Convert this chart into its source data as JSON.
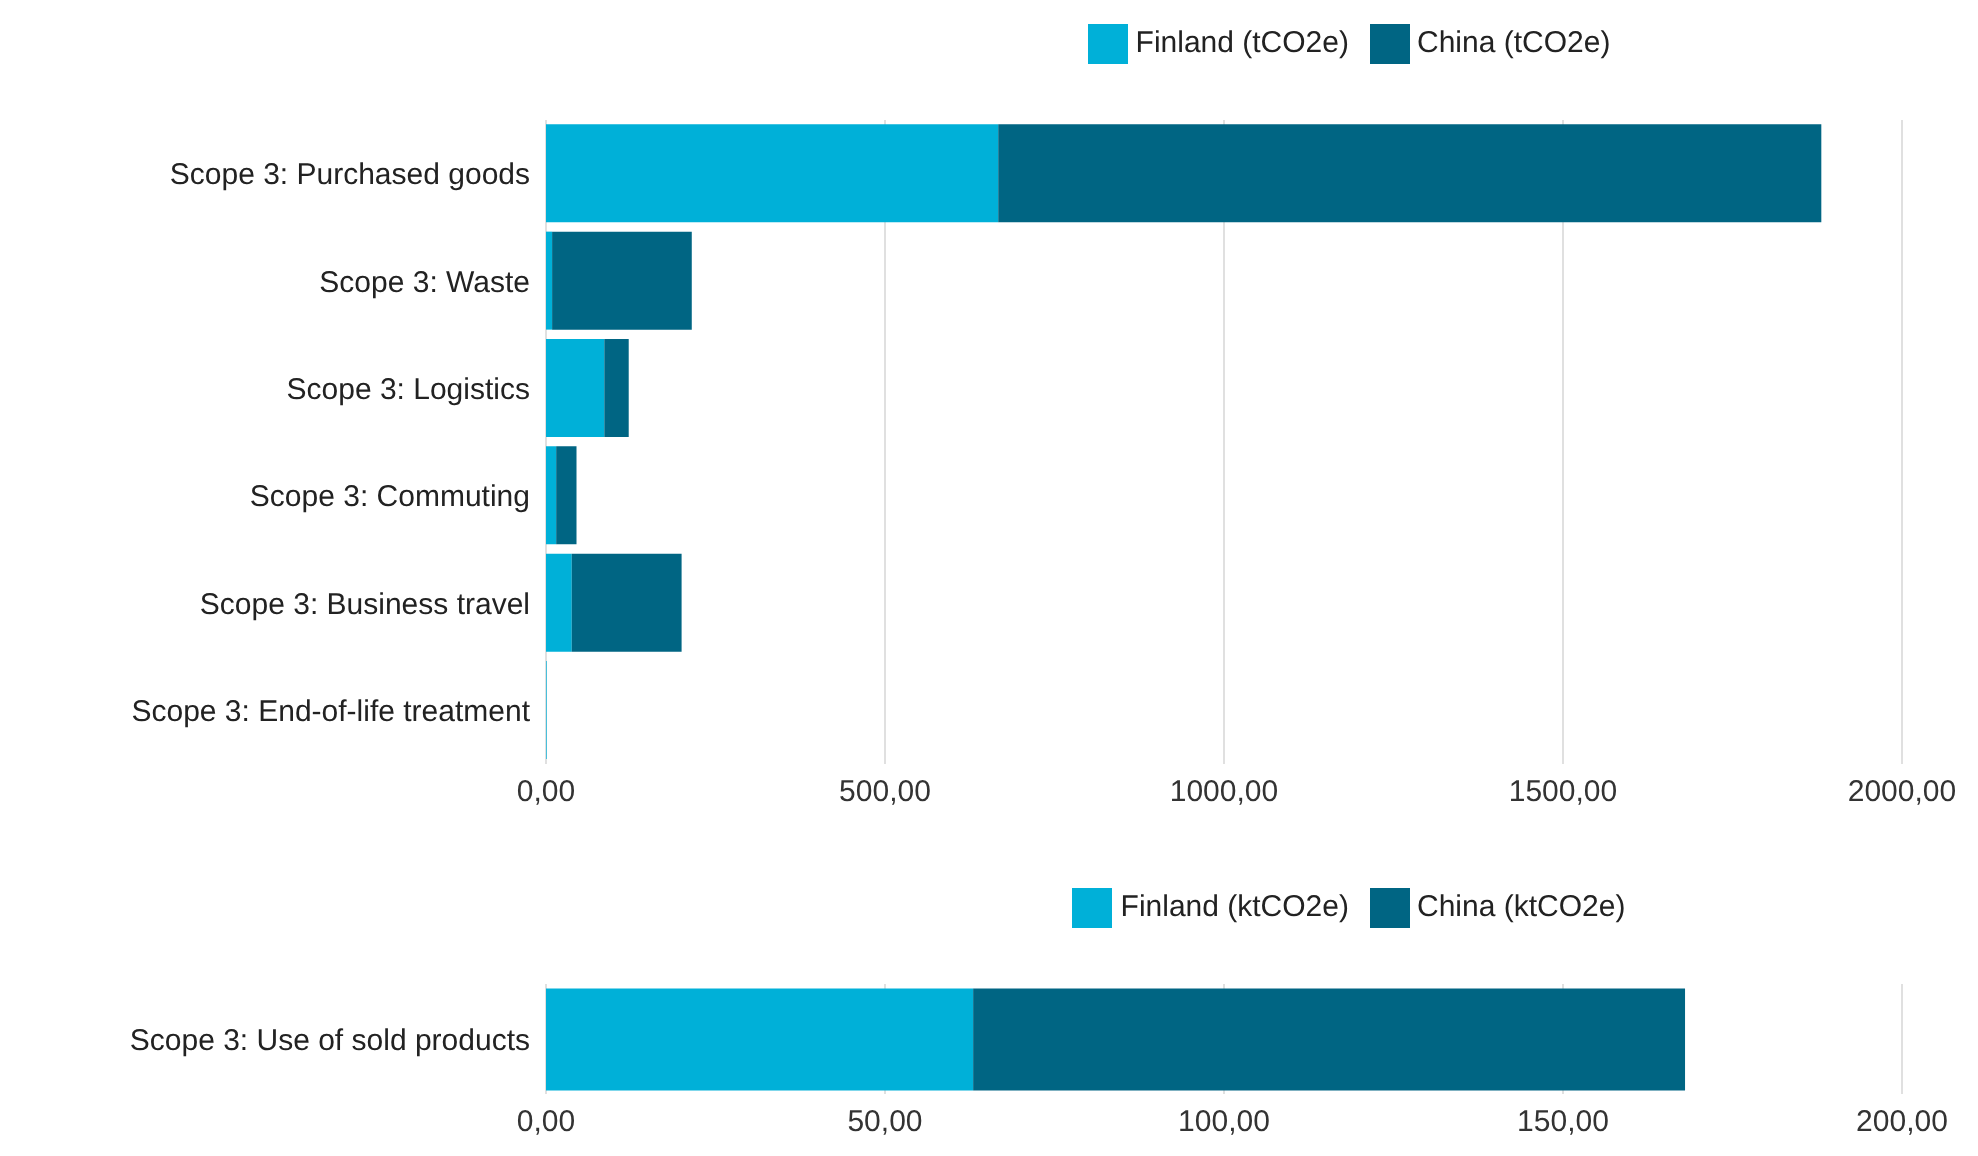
{
  "chart_data": [
    {
      "type": "bar",
      "orientation": "horizontal",
      "stacked": true,
      "categories": [
        "Scope 3: Purchased goods",
        "Scope 3: Waste",
        "Scope 3: Logistics",
        "Scope 3: Commuting",
        "Scope 3: Business travel",
        "Scope 3: End-of-life treatment"
      ],
      "series": [
        {
          "name": "Finland (tCO2e)",
          "color": "#00b0d8",
          "values": [
            667,
            9,
            86,
            15,
            38,
            1
          ]
        },
        {
          "name": "China (tCO2e)",
          "color": "#006583",
          "values": [
            1214,
            206,
            36,
            30,
            162,
            0
          ]
        }
      ],
      "xlim": [
        0,
        2000
      ],
      "xticks": [
        {
          "value": 0,
          "label": "0,00"
        },
        {
          "value": 500,
          "label": "500,00"
        },
        {
          "value": 1000,
          "label": "1000,00"
        },
        {
          "value": 1500,
          "label": "1500,00"
        },
        {
          "value": 2000,
          "label": "2000,00"
        }
      ],
      "grid": "x",
      "legend": "top"
    },
    {
      "type": "bar",
      "orientation": "horizontal",
      "stacked": true,
      "categories": [
        "Scope 3: Use of sold products"
      ],
      "series": [
        {
          "name": "Finland (ktCO2e)",
          "color": "#00b0d8",
          "values": [
            63
          ]
        },
        {
          "name": "China (ktCO2e)",
          "color": "#006583",
          "values": [
            105
          ]
        }
      ],
      "xlim": [
        0,
        200
      ],
      "xticks": [
        {
          "value": 0,
          "label": "0,00"
        },
        {
          "value": 50,
          "label": "50,00"
        },
        {
          "value": 100,
          "label": "100,00"
        },
        {
          "value": 150,
          "label": "150,00"
        },
        {
          "value": 200,
          "label": "200,00"
        }
      ],
      "grid": "x",
      "legend": "top"
    }
  ]
}
